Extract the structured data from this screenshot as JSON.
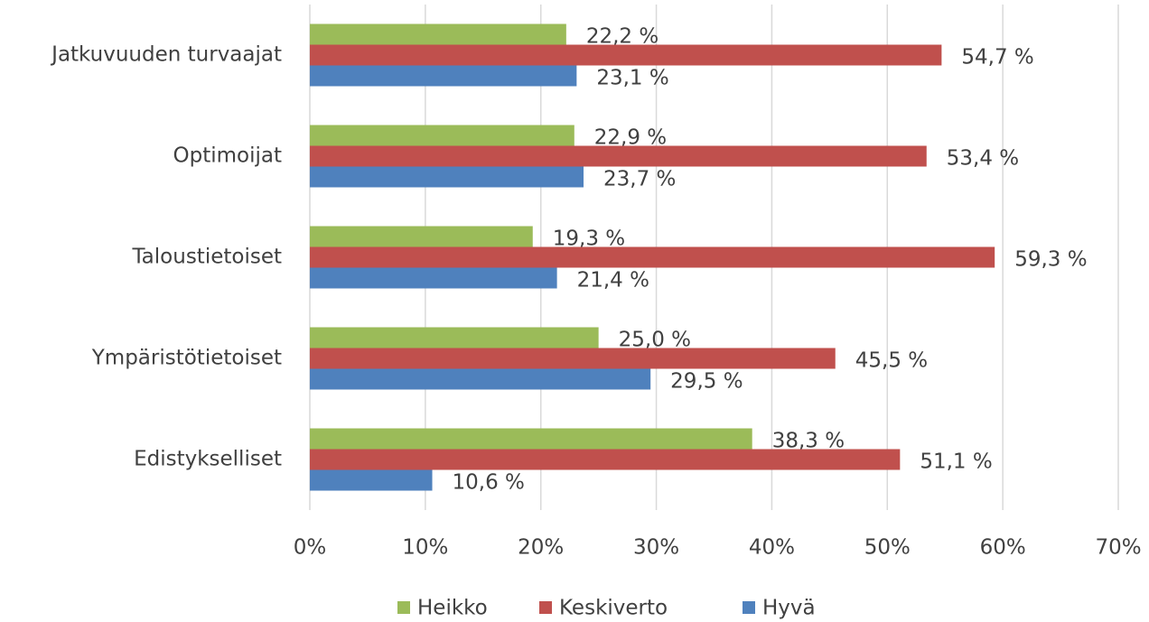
{
  "chart_data": {
    "type": "hbar",
    "categories": [
      "Jatkuvuuden turvaajat",
      "Optimoijat",
      "Taloustietoiset",
      "Ympäristötietoiset",
      "Edistykselliset"
    ],
    "series": [
      {
        "name": "Heikko",
        "color": "#9bbb59",
        "values": [
          22.2,
          22.9,
          19.3,
          25.0,
          38.3
        ],
        "value_labels": [
          "22,2 %",
          "22,9 %",
          "19,3 %",
          "25,0 %",
          "38,3 %"
        ]
      },
      {
        "name": "Keskiverto",
        "color": "#c0504d",
        "values": [
          54.7,
          53.4,
          59.3,
          45.5,
          51.1
        ],
        "value_labels": [
          "54,7 %",
          "53,4 %",
          "59,3 %",
          "45,5 %",
          "51,1 %"
        ]
      },
      {
        "name": "Hyvä",
        "color": "#4f81bd",
        "values": [
          23.1,
          23.7,
          21.4,
          29.5,
          10.6
        ],
        "value_labels": [
          "23,1 %",
          "23,7 %",
          "21,4 %",
          "29,5 %",
          "10,6 %"
        ]
      }
    ],
    "xlim": [
      0,
      70
    ],
    "xticks": [
      {
        "value": 0,
        "label": "0%"
      },
      {
        "value": 10,
        "label": "10%"
      },
      {
        "value": 20,
        "label": "20%"
      },
      {
        "value": 30,
        "label": "30%"
      },
      {
        "value": 40,
        "label": "40%"
      },
      {
        "value": 50,
        "label": "50%"
      },
      {
        "value": 60,
        "label": "60%"
      },
      {
        "value": 70,
        "label": "70%"
      }
    ],
    "grid": true,
    "legend": "bottom"
  }
}
